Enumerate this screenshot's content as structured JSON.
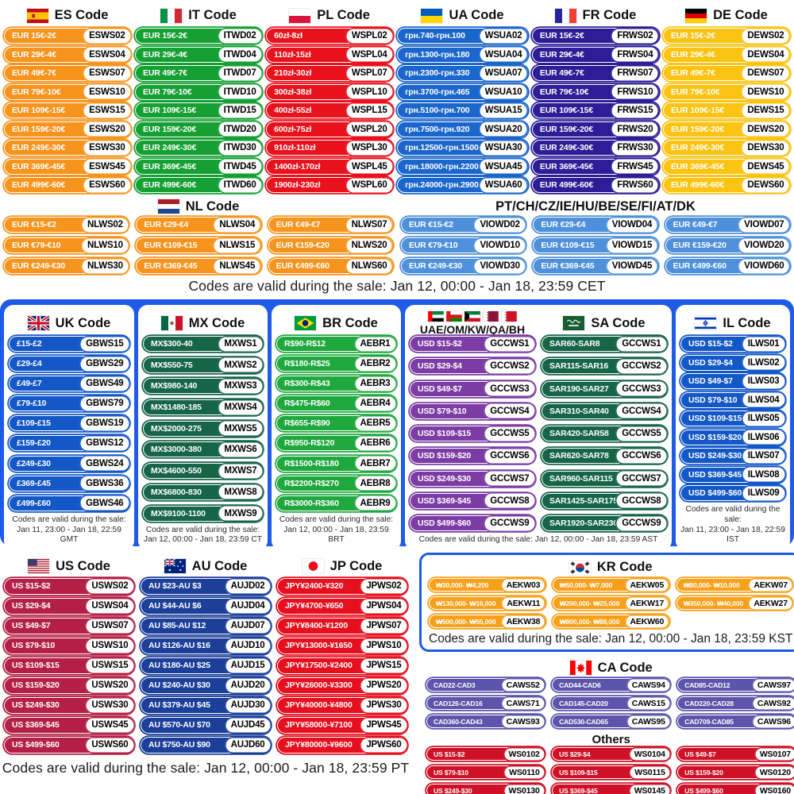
{
  "texts": {
    "cet": "Codes are valid during the sale: Jan 12, 00:00 - Jan 18, 23:59 CET",
    "ast": "Codes are valid during the sale: Jan 12, 00:00 - Jan 18, 23:59 AST",
    "pt": "Codes are valid during the sale: Jan 12, 00:00 - Jan 18, 23:59 PT"
  },
  "band_color": "#1E5BE8",
  "sections": {
    "es": {
      "title": "ES Code",
      "flag": "es",
      "color": "#F7941E",
      "pills": [
        [
          "EUR 15€-2€",
          "ESWS02"
        ],
        [
          "EUR 29€-4€",
          "ESWS04"
        ],
        [
          "EUR 49€-7€",
          "ESWS07"
        ],
        [
          "EUR 79€-10€",
          "ESWS10"
        ],
        [
          "EUR 109€-15€",
          "ESWS15"
        ],
        [
          "EUR 159€-20€",
          "ESWS20"
        ],
        [
          "EUR 249€-30€",
          "ESWS30"
        ],
        [
          "EUR 369€-45€",
          "ESWS45"
        ],
        [
          "EUR 499€-60€",
          "ESWS60"
        ]
      ]
    },
    "it": {
      "title": "IT Code",
      "flag": "it",
      "color": "#16A034",
      "pills": [
        [
          "EUR 15€-2€",
          "ITWD02"
        ],
        [
          "EUR 29€-4€",
          "ITWD04"
        ],
        [
          "EUR 49€-7€",
          "ITWD07"
        ],
        [
          "EUR 79€-10€",
          "ITWD10"
        ],
        [
          "EUR 109€-15€",
          "ITWD15"
        ],
        [
          "EUR 159€-20€",
          "ITWD20"
        ],
        [
          "EUR 249€-30€",
          "ITWD30"
        ],
        [
          "EUR 369€-45€",
          "ITWD45"
        ],
        [
          "EUR 499€-60€",
          "ITWD60"
        ]
      ]
    },
    "pl": {
      "title": "PL Code",
      "flag": "pl",
      "color": "#E8111C",
      "pills": [
        [
          "60zł-8zł",
          "WSPL02"
        ],
        [
          "110zł-15zł",
          "WSPL04"
        ],
        [
          "210zł-30zł",
          "WSPL07"
        ],
        [
          "300zł-38zł",
          "WSPL10"
        ],
        [
          "400zł-55zł",
          "WSPL15"
        ],
        [
          "600zł-75zł",
          "WSPL20"
        ],
        [
          "910zł-110zł",
          "WSPL30"
        ],
        [
          "1400zł-170zł",
          "WSPL45"
        ],
        [
          "1900zł-230zł",
          "WSPL60"
        ]
      ]
    },
    "ua": {
      "title": "UA Code",
      "flag": "ua",
      "color": "#1B66CC",
      "pills": [
        [
          "грн.740-грн.100",
          "WSUA02"
        ],
        [
          "грн.1300-грн.180",
          "WSUA04"
        ],
        [
          "грн.2300-грн.330",
          "WSUA07"
        ],
        [
          "грн.3700-грн.465",
          "WSUA10"
        ],
        [
          "грн.5100-грн.700",
          "WSUA15"
        ],
        [
          "грн.7500-грн.920",
          "WSUA20"
        ],
        [
          "грн.12500-грн.1500",
          "WSUA30"
        ],
        [
          "грн.18000-грн.2200",
          "WSUA45"
        ],
        [
          "грн.24000-грн.2900",
          "WSUA60"
        ]
      ]
    },
    "fr": {
      "title": "FR Code",
      "flag": "fr",
      "color": "#2D1D96",
      "pills": [
        [
          "EUR 15€-2€",
          "FRWS02"
        ],
        [
          "EUR 29€-4€",
          "FRWS04"
        ],
        [
          "EUR 49€-7€",
          "FRWS07"
        ],
        [
          "EUR 79€-10€",
          "FRWS10"
        ],
        [
          "EUR 109€-15€",
          "FRWS15"
        ],
        [
          "EUR 159€-20€",
          "FRWS20"
        ],
        [
          "EUR 249€-30€",
          "FRWS30"
        ],
        [
          "EUR 369€-45€",
          "FRWS45"
        ],
        [
          "EUR 499€-60€",
          "FRWS60"
        ]
      ]
    },
    "de": {
      "title": "DE Code",
      "flag": "de",
      "color": "#FBC413",
      "pills": [
        [
          "EUR 15€-2€",
          "DEWS02"
        ],
        [
          "EUR 29€-4€",
          "DEWS04"
        ],
        [
          "EUR 49€-7€",
          "DEWS07"
        ],
        [
          "EUR 79€-10€",
          "DEWS10"
        ],
        [
          "EUR 109€-15€",
          "DEWS15"
        ],
        [
          "EUR 159€-20€",
          "DEWS20"
        ],
        [
          "EUR 249€-30€",
          "DEWS30"
        ],
        [
          "EUR 369€-45€",
          "DEWS45"
        ],
        [
          "EUR 499€-60€",
          "DEWS60"
        ]
      ]
    },
    "nl": {
      "title": "NL Code",
      "flag": "nl",
      "color": "#F7941E",
      "pills": [
        [
          "EUR €15-€2",
          "NLWS02"
        ],
        [
          "EUR €29-€4",
          "NLWS04"
        ],
        [
          "EUR €49-€7",
          "NLWS07"
        ],
        [
          "EUR €79-€10",
          "NLWS10"
        ],
        [
          "EUR €109-€15",
          "NLWS15"
        ],
        [
          "EUR €159-€20",
          "NLWS20"
        ],
        [
          "EUR €249-€30",
          "NLWS30"
        ],
        [
          "EUR €369-€45",
          "NLWS45"
        ],
        [
          "EUR €499-€60",
          "NLWS60"
        ]
      ]
    },
    "vio": {
      "title": "PT/CH/CZ/IE/HU/BE/SE/FI/AT/DK",
      "color": "#4E90D9",
      "pills": [
        [
          "EUR €15-€2",
          "VIOWD02"
        ],
        [
          "EUR €29-€4",
          "VIOWD04"
        ],
        [
          "EUR €49-€7",
          "VIOWD07"
        ],
        [
          "EUR €79-€10",
          "VIOWD10"
        ],
        [
          "EUR €109-€15",
          "VIOWD15"
        ],
        [
          "EUR €159-€20",
          "VIOWD20"
        ],
        [
          "EUR €249-€30",
          "VIOWD30"
        ],
        [
          "EUR €369-€45",
          "VIOWD45"
        ],
        [
          "EUR €499-€60",
          "VIOWD60"
        ]
      ]
    },
    "uk": {
      "title": "UK Code",
      "flag": "uk",
      "color": "#1458C8",
      "validity": "Codes are valid during the sale:\nJan 11, 23:00 - Jan 18, 22:59 GMT",
      "pills": [
        [
          "£15-£2",
          "GBWS15"
        ],
        [
          "£29-£4",
          "GBWS29"
        ],
        [
          "£49-£7",
          "GBWS49"
        ],
        [
          "£79-£10",
          "GBWS79"
        ],
        [
          "£109-£15",
          "GBWS19"
        ],
        [
          "£159-£20",
          "GBWS12"
        ],
        [
          "£249-£30",
          "GBWS24"
        ],
        [
          "£369-£45",
          "GBWS36"
        ],
        [
          "£499-£60",
          "GBWS46"
        ]
      ]
    },
    "mx": {
      "title": "MX Code",
      "flag": "mx",
      "color": "#176549",
      "validity": "Codes are valid during the sale:\nJan 12, 00:00 - Jan 18, 23:59 CT",
      "pills": [
        [
          "MX$300-40",
          "MXWS1"
        ],
        [
          "MX$550-75",
          "MXWS2"
        ],
        [
          "MX$980-140",
          "MXWS3"
        ],
        [
          "MX$1480-185",
          "MXWS4"
        ],
        [
          "MX$2000-275",
          "MXWS5"
        ],
        [
          "MX$3000-380",
          "MXWS6"
        ],
        [
          "MX$4600-550",
          "MXWS7"
        ],
        [
          "MX$6800-830",
          "MXWS8"
        ],
        [
          "MX$9100-1100",
          "MXWS9"
        ]
      ]
    },
    "br": {
      "title": "BR Code",
      "flag": "br",
      "color": "#1FA83E",
      "validity": "Codes are valid during the sale:\nJan 12, 00:00 - Jan 18, 23:59 BRT",
      "pills": [
        [
          "R$90-R$12",
          "AEBR1"
        ],
        [
          "R$180-R$25",
          "AEBR2"
        ],
        [
          "R$300-R$43",
          "AEBR3"
        ],
        [
          "R$475-R$60",
          "AEBR4"
        ],
        [
          "R$655-R$90",
          "AEBR5"
        ],
        [
          "R$950-R$120",
          "AEBR6"
        ],
        [
          "R$1500-R$180",
          "AEBR7"
        ],
        [
          "R$2200-R$270",
          "AEBR8"
        ],
        [
          "R$3000-R$360",
          "AEBR9"
        ]
      ]
    },
    "uae": {
      "title": "UAE/OM/KW/QA/BH",
      "flags": [
        "uae",
        "om",
        "kw",
        "qa",
        "bh"
      ],
      "color": "#7C3CA4",
      "pills": [
        [
          "USD $15-$2",
          "GCCWS1"
        ],
        [
          "USD $29-$4",
          "GCCWS2"
        ],
        [
          "USD $49-$7",
          "GCCWS3"
        ],
        [
          "USD $79-$10",
          "GCCWS4"
        ],
        [
          "USD $109-$15",
          "GCCWS5"
        ],
        [
          "USD $159-$20",
          "GCCWS6"
        ],
        [
          "USD $249-$30",
          "GCCWS7"
        ],
        [
          "USD $369-$45",
          "GCCWS8"
        ],
        [
          "USD $499-$60",
          "GCCWS9"
        ]
      ]
    },
    "sa": {
      "title": "SA Code",
      "flag": "sa",
      "color": "#176549",
      "pills": [
        [
          "SAR60-SAR8",
          "GCCWS1"
        ],
        [
          "SAR115-SAR16",
          "GCCWS2"
        ],
        [
          "SAR190-SAR27",
          "GCCWS3"
        ],
        [
          "SAR310-SAR40",
          "GCCWS4"
        ],
        [
          "SAR420-SAR58",
          "GCCWS5"
        ],
        [
          "SAR620-SAR78",
          "GCCWS6"
        ],
        [
          "SAR960-SAR115",
          "GCCWS7"
        ],
        [
          "SAR1425-SAR175",
          "GCCWS8"
        ],
        [
          "SAR1920-SAR230",
          "GCCWS9"
        ]
      ]
    },
    "il": {
      "title": "IL Code",
      "flag": "il",
      "color": "#1458C8",
      "validity": "Codes are valid during the sale:\nJan 11, 23:00 - Jan 18, 22:59 IST",
      "pills": [
        [
          "USD $15-$2",
          "ILWS01"
        ],
        [
          "USD $29-$4",
          "ILWS02"
        ],
        [
          "USD $49-$7",
          "ILWS03"
        ],
        [
          "USD $79-$10",
          "ILWS04"
        ],
        [
          "USD $109-$15",
          "ILWS05"
        ],
        [
          "USD $159-$20",
          "ILWS06"
        ],
        [
          "USD $249-$30",
          "ILWS07"
        ],
        [
          "USD $369-$45",
          "ILWS08"
        ],
        [
          "USD $499-$60",
          "ILWS09"
        ]
      ]
    },
    "us": {
      "title": "US Code",
      "flag": "us",
      "color": "#B42045",
      "pills": [
        [
          "US $15-$2",
          "USWS02"
        ],
        [
          "US $29-$4",
          "USWS04"
        ],
        [
          "US $49-$7",
          "USWS07"
        ],
        [
          "US $79-$10",
          "USWS10"
        ],
        [
          "US $109-$15",
          "USWS15"
        ],
        [
          "US $159-$20",
          "USWS20"
        ],
        [
          "US $249-$30",
          "USWS30"
        ],
        [
          "US $369-$45",
          "USWS45"
        ],
        [
          "US $499-$60",
          "USWS60"
        ]
      ]
    },
    "au": {
      "title": "AU Code",
      "flag": "au",
      "color": "#1C3F99",
      "pills": [
        [
          "AU $23-AU $3",
          "AUJD02"
        ],
        [
          "AU $44-AU $6",
          "AUJD04"
        ],
        [
          "AU $85-AU $12",
          "AUJD07"
        ],
        [
          "AU $126-AU $16",
          "AUJD10"
        ],
        [
          "AU $180-AU $25",
          "AUJD15"
        ],
        [
          "AU $240-AU $30",
          "AUJD20"
        ],
        [
          "AU $379-AU $45",
          "AUJD30"
        ],
        [
          "AU $570-AU $70",
          "AUJD45"
        ],
        [
          "AU $750-AU $90",
          "AUJD60"
        ]
      ]
    },
    "jp": {
      "title": "JP Code",
      "flag": "jp",
      "color": "#E60F1E",
      "pills": [
        [
          "JPY¥2400-¥320",
          "JPWS02"
        ],
        [
          "JPY¥4700-¥650",
          "JPWS04"
        ],
        [
          "JPY¥8400-¥1200",
          "JPWS07"
        ],
        [
          "JPY¥13000-¥1650",
          "JPWS10"
        ],
        [
          "JPY¥17500-¥2400",
          "JPWS15"
        ],
        [
          "JPY¥26000-¥3300",
          "JPWS20"
        ],
        [
          "JPY¥40000-¥4800",
          "JPWS30"
        ],
        [
          "JPY¥58000-¥7100",
          "JPWS45"
        ],
        [
          "JPY¥80000-¥9600",
          "JPWS60"
        ]
      ]
    },
    "kr": {
      "title": "KR Code",
      "flag": "kr",
      "color": "#F7A11B",
      "validity": "Codes are valid during the sale: Jan 12, 00:00 - Jan 18, 23:59 KST",
      "pills": [
        [
          "₩30,000- ₩4,200",
          "AEKW03"
        ],
        [
          "₩50,000- ₩7,000",
          "AEKW05"
        ],
        [
          "₩80,000- ₩10,000",
          "AEKW07"
        ],
        [
          "₩130,000- ₩16,000",
          "AEKW11"
        ],
        [
          "₩200,000- ₩25,000",
          "AEKW17"
        ],
        [
          "₩350,000- ₩40,000",
          "AEKW27"
        ],
        [
          "₩500,000- ₩55,000",
          "AEKW38"
        ],
        [
          "₩800,000- ₩88,000",
          "AEKW60"
        ]
      ]
    },
    "ca": {
      "title": "CA Code",
      "flag": "ca",
      "color": "#5D55AC",
      "pills": [
        [
          "CAD22-CAD3",
          "CAWS52"
        ],
        [
          "CAD44-CAD6",
          "CAWS94"
        ],
        [
          "CAD85-CAD12",
          "CAWS97"
        ],
        [
          "CAD126-CAD16",
          "CAWS71"
        ],
        [
          "CAD145-CAD20",
          "CAWS15"
        ],
        [
          "CAD220-CAD28",
          "CAWS92"
        ],
        [
          "CAD360-CAD43",
          "CAWS93"
        ],
        [
          "CAD530-CAD65",
          "CAWS95"
        ],
        [
          "CAD709-CAD85",
          "CAWS96"
        ]
      ]
    },
    "others": {
      "title": "Others",
      "color": "#CE1126",
      "pills": [
        [
          "US $15-$2",
          "WS0102"
        ],
        [
          "US $29-$4",
          "WS0104"
        ],
        [
          "US $49-$7",
          "WS0107"
        ],
        [
          "US $79-$10",
          "WS0110"
        ],
        [
          "US $109-$15",
          "WS0115"
        ],
        [
          "US $159-$20",
          "WS0120"
        ],
        [
          "US $249-$30",
          "WS0130"
        ],
        [
          "US $369-$45",
          "WS0145"
        ],
        [
          "US $499-$60",
          "WS0160"
        ]
      ]
    }
  }
}
